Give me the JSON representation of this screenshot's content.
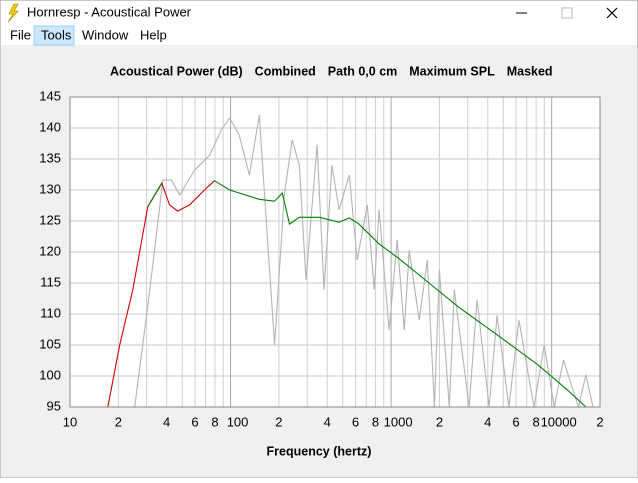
{
  "window": {
    "title": "Hornresp - Acoustical Power",
    "menu": [
      "File",
      "Tools",
      "Window",
      "Help"
    ]
  },
  "chart_data": {
    "type": "line",
    "log_x": true,
    "grid": true,
    "header": [
      "Acoustical Power (dB)",
      "Combined",
      "Path 0,0 cm",
      "Maximum SPL",
      "Masked"
    ],
    "x_label": "Frequency (hertz)",
    "xlim": [
      10,
      20000
    ],
    "ylim": [
      95,
      145
    ],
    "yticks": [
      95,
      100,
      105,
      110,
      115,
      120,
      125,
      130,
      135,
      140,
      145
    ],
    "xticks": [
      10,
      {
        "value": 20,
        "label": "2"
      },
      {
        "value": 30,
        "label": null
      },
      {
        "value": 40,
        "label": "4"
      },
      {
        "value": 50,
        "label": null
      },
      {
        "value": 60,
        "label": "6"
      },
      {
        "value": 70,
        "label": null
      },
      {
        "value": 80,
        "label": "8"
      },
      {
        "value": 90,
        "label": null
      },
      100,
      {
        "value": 200,
        "label": "2"
      },
      {
        "value": 300,
        "label": null
      },
      {
        "value": 400,
        "label": "4"
      },
      {
        "value": 500,
        "label": null
      },
      {
        "value": 600,
        "label": "6"
      },
      {
        "value": 700,
        "label": null
      },
      {
        "value": 800,
        "label": "8"
      },
      {
        "value": 900,
        "label": null
      },
      1000,
      {
        "value": 2000,
        "label": "2"
      },
      {
        "value": 3000,
        "label": null
      },
      {
        "value": 4000,
        "label": "4"
      },
      {
        "value": 5000,
        "label": null
      },
      {
        "value": 6000,
        "label": "6"
      },
      {
        "value": 7000,
        "label": null
      },
      {
        "value": 8000,
        "label": "8"
      },
      {
        "value": 9000,
        "label": null
      },
      10000,
      {
        "value": 20000,
        "label": "2"
      }
    ],
    "series": [
      {
        "color": "#b4b4b4",
        "x": [
          25.3,
          31.4,
          37.9,
          42.9,
          48.2,
          59.6,
          74,
          87.6,
          98.6,
          113,
          131,
          151,
          162,
          188,
          216,
          242,
          268,
          295,
          346,
          382,
          428,
          474,
          549,
          615,
          711,
          785,
          842,
          972,
          1091,
          1208,
          1297,
          1497,
          1680,
          1861,
          1999,
          2302,
          2474,
          3062,
          3432,
          4075,
          4569,
          5417,
          6250,
          7766,
          8990,
          10380,
          11840,
          14700,
          16350,
          18100
        ],
        "values": [
          95,
          113.9,
          131.6,
          131.6,
          129.2,
          133.2,
          135.6,
          139.7,
          141.6,
          138.9,
          132.4,
          142.1,
          130,
          105,
          129.2,
          138.1,
          134,
          115.5,
          137.3,
          113.9,
          134,
          126.8,
          132.4,
          118.7,
          127.6,
          113.9,
          126.8,
          107.4,
          121.9,
          107.4,
          120.3,
          109,
          118.7,
          95,
          117.1,
          95,
          113.9,
          95,
          112.3,
          95,
          109.8,
          95,
          109,
          95,
          105,
          95,
          102.6,
          95,
          100.2,
          95
        ]
      },
      {
        "color": "#d00000",
        "x": [
          17.2,
          20.4,
          24.6,
          30.5,
          37.3,
          41.7,
          46.8,
          55.6,
          68.8,
          79.4
        ],
        "values": [
          95,
          105,
          113.9,
          127.3,
          131.1,
          127.6,
          126.6,
          127.6,
          130,
          131.5
        ]
      },
      {
        "color": "#008000",
        "x": [
          30.5,
          37.3,
          55.6,
          79.4,
          98.6,
          151,
          188,
          210,
          233,
          268,
          357,
          474,
          549,
          630,
          842,
          1124,
          1721,
          2635,
          4653,
          8210,
          12600,
          16350
        ],
        "values": [
          127.3,
          131.1,
          null,
          131.5,
          130,
          128.5,
          128.2,
          129.5,
          124.5,
          125.6,
          125.6,
          124.8,
          125.5,
          124.5,
          121.3,
          118.9,
          115,
          111.1,
          106.5,
          101.8,
          97.7,
          95
        ]
      }
    ]
  }
}
